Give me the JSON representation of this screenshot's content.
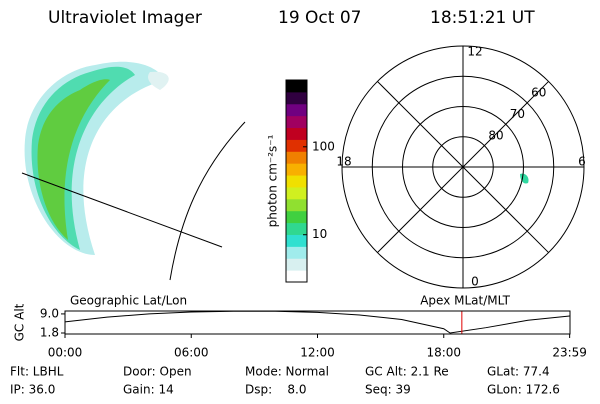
{
  "header": {
    "title": "Ultraviolet Imager",
    "date": "19 Oct 07",
    "time": "18:51:21 UT"
  },
  "chart_data": [
    {
      "type": "polar",
      "thetaticks": [
        0,
        6,
        12,
        18
      ],
      "thetalim": [
        0,
        24
      ],
      "rticks": [
        60,
        70,
        80
      ],
      "rlim": [
        90,
        50
      ]
    },
    {
      "type": "colorbar",
      "label": "photon cm⁻²s⁻¹",
      "log": true,
      "ylim": [
        2.9,
        575
      ],
      "yticks": [
        10,
        100
      ],
      "colors": [
        "#ffffff",
        "#d8f0f0",
        "#a0ecec",
        "#30e0d0",
        "#30d890",
        "#40d040",
        "#90e030",
        "#d0f020",
        "#f0e000",
        "#f8b000",
        "#f08000",
        "#e03000",
        "#c00020",
        "#a00060",
        "#700080",
        "#300040",
        "#000000"
      ]
    },
    {
      "type": "line",
      "title": "Geographic Lat/Lon",
      "subtitle": "Apex MLat/MLT",
      "ylabel": "GC Alt",
      "xlim": [
        0,
        24
      ],
      "xticks": [
        {
          "value": 0,
          "label": "00:00"
        },
        {
          "value": 6,
          "label": "06:00"
        },
        {
          "value": 12,
          "label": "12:00"
        },
        {
          "value": 18,
          "label": "18:00"
        },
        {
          "value": 23.983,
          "label": "23:59"
        }
      ],
      "ylim": [
        1.42,
        10.1
      ],
      "yticks": [
        {
          "value": 9,
          "label": "9.0"
        },
        1.8
      ],
      "x": [
        0,
        2,
        4,
        6,
        8,
        10,
        12,
        14,
        16,
        18,
        18.3,
        20,
        22,
        23.983
      ],
      "series": [
        {
          "color": "#000000",
          "values": [
            6.0,
            7.8,
            9.0,
            9.7,
            10.0,
            10.0,
            9.6,
            8.6,
            6.9,
            3.4,
            1.8,
            3.8,
            6.6,
            8.2
          ]
        }
      ],
      "cursor_x": 18.86,
      "cursor_color": "#e00000"
    }
  ],
  "footer": [
    [
      "Flt: LBHL",
      "Door: Open",
      "Mode: Normal",
      "GC Alt: 2.1 Re",
      "GLat: 77.4"
    ],
    [
      "IP: 36.0",
      "Gain: 14",
      "Dsp:    8.0",
      "Seq: 39",
      "GLon: 172.6"
    ]
  ]
}
